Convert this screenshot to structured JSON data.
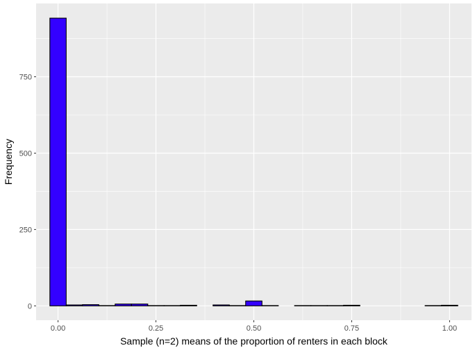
{
  "chart_data": {
    "type": "bar",
    "subtype": "histogram",
    "title": "",
    "xlabel": "Sample (n=2) means of the proportion of renters in each block",
    "ylabel": "Frequency",
    "xlim": [
      -0.056,
      1.056
    ],
    "ylim": [
      -47,
      990
    ],
    "x_ticks": [
      0.0,
      0.25,
      0.5,
      0.75,
      1.0
    ],
    "x_tick_labels": [
      "0.00",
      "0.25",
      "0.50",
      "0.75",
      "1.00"
    ],
    "y_ticks": [
      0,
      250,
      500,
      750
    ],
    "y_tick_labels": [
      "0",
      "250",
      "500",
      "750"
    ],
    "bin_width": 0.0417,
    "bin_centers": [
      0.0,
      0.0417,
      0.0833,
      0.125,
      0.1667,
      0.2083,
      0.25,
      0.2917,
      0.3333,
      0.375,
      0.4167,
      0.4583,
      0.5,
      0.5417,
      0.5833,
      0.625,
      0.6667,
      0.7083,
      0.75,
      0.7917,
      0.8333,
      0.875,
      0.9167,
      0.9583,
      1.0
    ],
    "values": [
      942,
      3,
      4,
      1,
      6,
      6,
      1,
      1,
      2,
      0,
      3,
      1,
      16,
      1,
      0,
      1,
      1,
      1,
      2,
      0,
      0,
      0,
      0,
      1,
      2
    ],
    "bar_fill": "#3300ff",
    "bar_outline": "#000000",
    "panel_background": "#ebebeb",
    "grid": true,
    "grid_color": "#ffffff",
    "legend": "none"
  }
}
